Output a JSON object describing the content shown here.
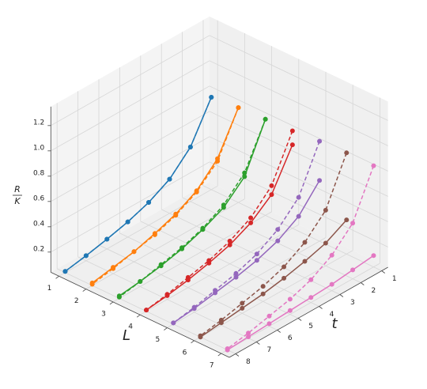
{
  "chart_data": {
    "type": "line3d",
    "xlabel": "L",
    "ylabel": "t",
    "zlabel": {
      "numerator": "R",
      "denominator": "K"
    },
    "xlim": [
      0.7,
      7.3
    ],
    "ylim": [
      0.7,
      8.3
    ],
    "zlim": [
      0.04,
      1.35
    ],
    "xticks": [
      1,
      2,
      3,
      4,
      5,
      6,
      7
    ],
    "yticks": [
      1,
      2,
      3,
      4,
      5,
      6,
      7,
      8
    ],
    "zticks": [
      0.2,
      0.4,
      0.6,
      0.8,
      {
        "value": 1,
        "label": "1.0"
      },
      1.2
    ],
    "grid": true,
    "t": [
      1,
      2,
      3,
      4,
      5,
      6,
      7,
      8
    ],
    "series": [
      {
        "L": 1,
        "color": "#1f77b4",
        "linestyle": "dashed",
        "values": [
          0.77,
          0.47,
          0.31,
          0.22,
          0.16,
          0.117,
          0.08,
          0.05
        ]
      },
      {
        "L": 1,
        "color": "#1f77b4",
        "linestyle": "solid",
        "values": [
          0.77,
          0.47,
          0.31,
          0.22,
          0.16,
          0.117,
          0.08,
          0.05
        ]
      },
      {
        "L": 2,
        "color": "#ff7f0e",
        "linestyle": "dashed",
        "values": [
          0.79,
          0.46,
          0.31,
          0.22,
          0.16,
          0.12,
          0.08,
          0.05
        ]
      },
      {
        "L": 2,
        "color": "#ff7f0e",
        "linestyle": "solid",
        "values": [
          0.79,
          0.48,
          0.32,
          0.23,
          0.17,
          0.12,
          0.09,
          0.06
        ]
      },
      {
        "L": 3,
        "color": "#2ca02c",
        "linestyle": "dashed",
        "values": [
          0.8,
          0.47,
          0.31,
          0.22,
          0.16,
          0.12,
          0.08,
          0.05
        ]
      },
      {
        "L": 3,
        "color": "#2ca02c",
        "linestyle": "solid",
        "values": [
          0.8,
          0.44,
          0.29,
          0.21,
          0.15,
          0.11,
          0.08,
          0.06
        ]
      },
      {
        "L": 4,
        "color": "#d62728",
        "linestyle": "dashed",
        "values": [
          0.81,
          0.47,
          0.31,
          0.22,
          0.16,
          0.12,
          0.08,
          0.05
        ]
      },
      {
        "L": 4,
        "color": "#d62728",
        "linestyle": "solid",
        "values": [
          0.7,
          0.4,
          0.27,
          0.19,
          0.14,
          0.1,
          0.07,
          0.05
        ]
      },
      {
        "L": 5,
        "color": "#9467bd",
        "linestyle": "dashed",
        "values": [
          0.83,
          0.48,
          0.32,
          0.22,
          0.16,
          0.12,
          0.08,
          0.05
        ]
      },
      {
        "L": 5,
        "color": "#9467bd",
        "linestyle": "solid",
        "values": [
          0.52,
          0.33,
          0.23,
          0.17,
          0.13,
          0.1,
          0.07,
          0.05
        ]
      },
      {
        "L": 6,
        "color": "#8c564b",
        "linestyle": "dashed",
        "values": [
          0.84,
          0.48,
          0.32,
          0.22,
          0.16,
          0.12,
          0.08,
          0.05
        ]
      },
      {
        "L": 6,
        "color": "#8c564b",
        "linestyle": "solid",
        "values": [
          0.31,
          0.22,
          0.17,
          0.13,
          0.1,
          0.08,
          0.06,
          0.04
        ]
      },
      {
        "L": 7,
        "color": "#e377c2",
        "linestyle": "dashed",
        "values": [
          0.84,
          0.48,
          0.32,
          0.22,
          0.16,
          0.12,
          0.08,
          0.05
        ]
      },
      {
        "L": 7,
        "color": "#e377c2",
        "linestyle": "solid",
        "values": [
          0.13,
          0.11,
          0.09,
          0.08,
          0.07,
          0.06,
          0.05,
          0.04
        ]
      }
    ]
  }
}
